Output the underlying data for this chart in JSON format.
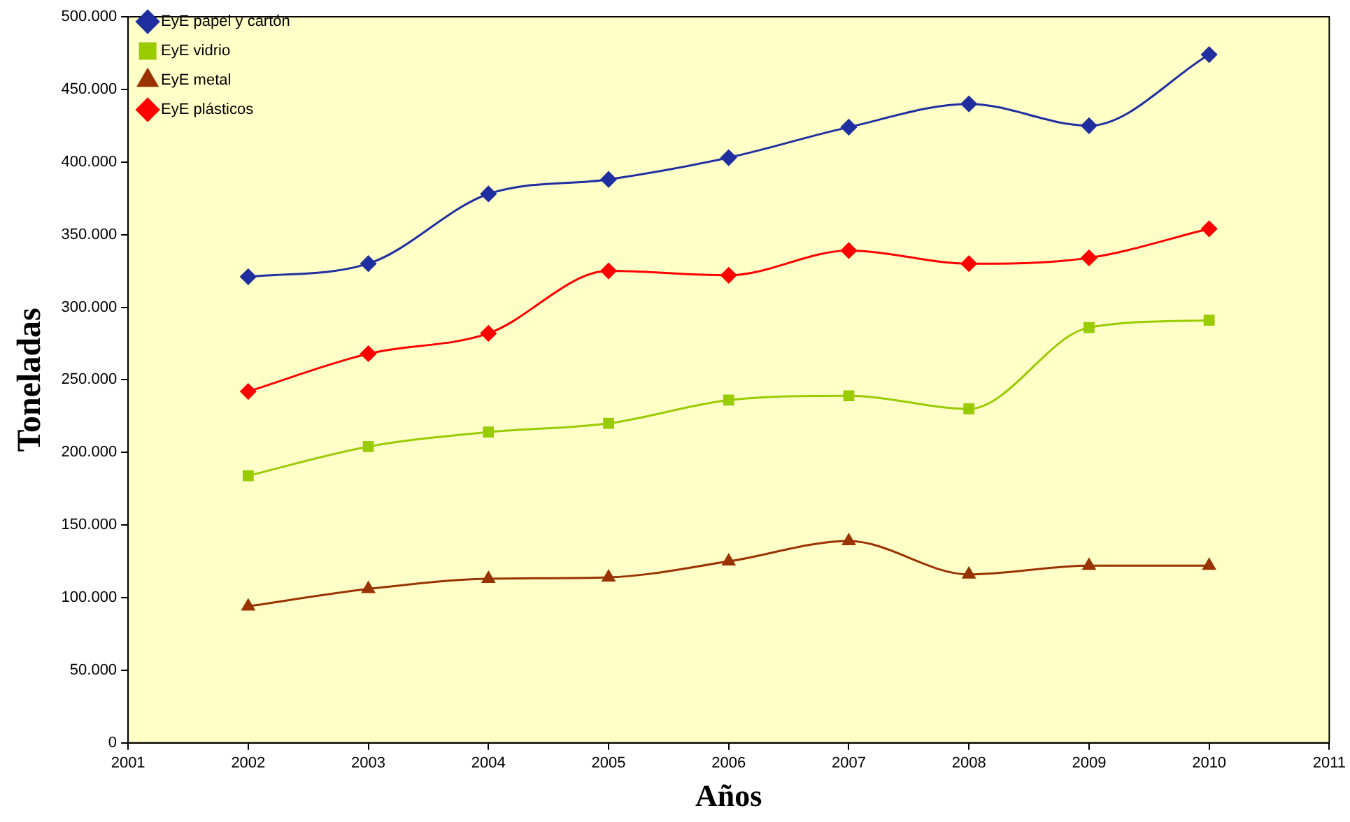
{
  "chart_data": {
    "type": "line",
    "xlabel": "Años",
    "ylabel": "Toneladas",
    "x": [
      2002,
      2003,
      2004,
      2005,
      2006,
      2007,
      2008,
      2009,
      2010
    ],
    "series": [
      {
        "name": "EyE papel y cartón",
        "color": "#1f2f9f",
        "marker": "diamond",
        "values": [
          321000,
          330000,
          378000,
          388000,
          403000,
          424000,
          440000,
          425000,
          474000
        ]
      },
      {
        "name": "EyE vidrio",
        "color": "#99cc00",
        "marker": "square",
        "values": [
          184000,
          204000,
          214000,
          220000,
          236000,
          239000,
          230000,
          286000,
          291000
        ]
      },
      {
        "name": "EyE metal",
        "color": "#993300",
        "marker": "triangle",
        "values": [
          94000,
          106000,
          113000,
          114000,
          125000,
          139000,
          116000,
          122000,
          122000
        ]
      },
      {
        "name": "EyE plásticos",
        "color": "#ff0000",
        "marker": "diamond",
        "values": [
          242000,
          268000,
          282000,
          325000,
          322000,
          339000,
          330000,
          334000,
          354000
        ]
      }
    ],
    "xlim": [
      2001,
      2011
    ],
    "xticks": [
      2001,
      2002,
      2003,
      2004,
      2005,
      2006,
      2007,
      2008,
      2009,
      2010,
      2011
    ],
    "ylim": [
      0,
      500000
    ],
    "yticks": [
      0,
      {
        "value": 50000,
        "label": "50.000"
      },
      {
        "value": 100000,
        "label": "100.000"
      },
      {
        "value": 150000,
        "label": "150.000"
      },
      {
        "value": 200000,
        "label": "200.000"
      },
      {
        "value": 250000,
        "label": "250.000"
      },
      {
        "value": 300000,
        "label": "300.000"
      },
      {
        "value": 350000,
        "label": "350.000"
      },
      {
        "value": 400000,
        "label": "400.000"
      },
      {
        "value": 450000,
        "label": "450.000"
      },
      {
        "value": 500000,
        "label": "500.000"
      }
    ],
    "grid": false,
    "legend": "top left",
    "line_style": "solid"
  }
}
